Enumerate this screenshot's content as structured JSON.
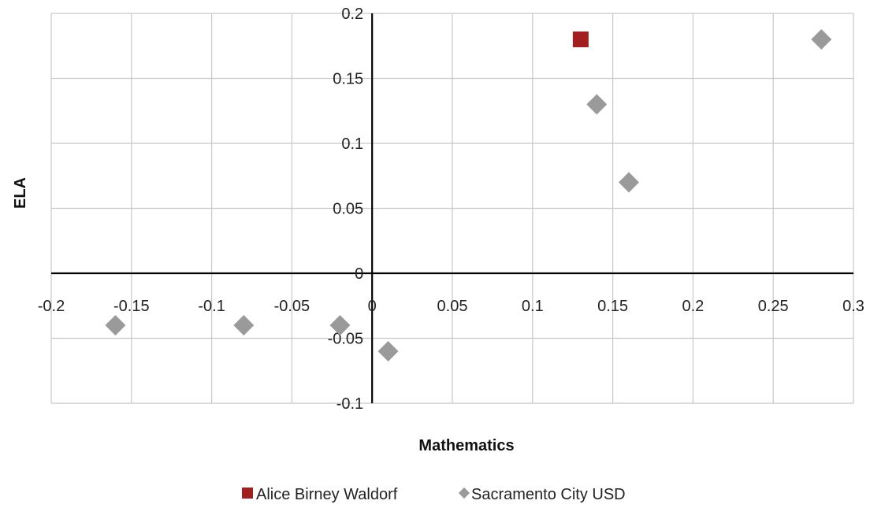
{
  "chart_data": {
    "type": "scatter",
    "xlabel": "Mathematics",
    "ylabel": "ELA",
    "xlim": [
      -0.2,
      0.3
    ],
    "ylim": [
      -0.1,
      0.2
    ],
    "x_ticks": [
      -0.2,
      -0.15,
      -0.1,
      -0.05,
      0,
      0.05,
      0.1,
      0.15,
      0.2,
      0.25,
      0.3
    ],
    "x_tick_labels": [
      "-0.2",
      "-0.15",
      "-0.1",
      "-0.05",
      "0",
      "0.05",
      "0.1",
      "0.15",
      "0.2",
      "0.25",
      "0.3"
    ],
    "y_ticks": [
      -0.1,
      -0.05,
      0,
      0.05,
      0.1,
      0.15,
      0.2
    ],
    "y_tick_labels": [
      "-0.1",
      "-0.05",
      "0",
      "0.05",
      "0.1",
      "0.15",
      "0.2"
    ],
    "grid": true,
    "legend_position": "bottom",
    "series": [
      {
        "name": "Alice Birney Waldorf",
        "marker": "square",
        "color": "#a31f1f",
        "points": [
          {
            "x": 0.13,
            "y": 0.18
          }
        ]
      },
      {
        "name": "Sacramento City USD",
        "marker": "diamond",
        "color": "#9a9a9a",
        "points": [
          {
            "x": -0.16,
            "y": -0.04
          },
          {
            "x": -0.08,
            "y": -0.04
          },
          {
            "x": -0.02,
            "y": -0.04
          },
          {
            "x": 0.01,
            "y": -0.06
          },
          {
            "x": 0.14,
            "y": 0.13
          },
          {
            "x": 0.16,
            "y": 0.07
          },
          {
            "x": 0.28,
            "y": 0.18
          }
        ]
      }
    ]
  }
}
